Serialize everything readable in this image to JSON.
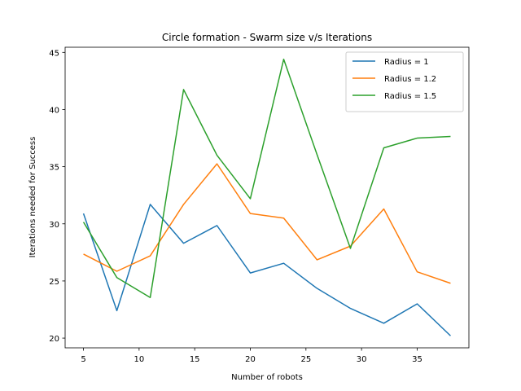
{
  "chart_data": {
    "type": "line",
    "title": "Circle formation - Swarm size v/s Iterations",
    "xlabel": "Number of robots",
    "ylabel": "Iterations needed for Success",
    "x": [
      5,
      8,
      11,
      14,
      17,
      20,
      23,
      26,
      29,
      32,
      35,
      38
    ],
    "xlim": [
      3.35,
      39.65
    ],
    "ylim": [
      19.15,
      45.45
    ],
    "xticks": [
      5,
      10,
      15,
      20,
      25,
      30,
      35
    ],
    "yticks": [
      20,
      25,
      30,
      35,
      40,
      45
    ],
    "grid": false,
    "legend_position": "top-right",
    "series": [
      {
        "name": "Radius = 1",
        "color": "#1f77b4",
        "values": [
          30.9,
          22.4,
          31.7,
          28.3,
          29.85,
          25.7,
          26.55,
          24.35,
          22.6,
          21.3,
          23.0,
          20.2
        ]
      },
      {
        "name": "Radius = 1.2",
        "color": "#ff7f0e",
        "values": [
          27.35,
          25.85,
          27.2,
          31.7,
          35.25,
          30.9,
          30.5,
          26.85,
          28.05,
          31.3,
          25.8,
          24.8
        ]
      },
      {
        "name": "Radius = 1.5",
        "color": "#2ca02c",
        "values": [
          30.15,
          25.3,
          23.55,
          41.75,
          36.0,
          32.2,
          44.4,
          36.05,
          27.85,
          36.65,
          37.5,
          37.65
        ]
      }
    ]
  }
}
